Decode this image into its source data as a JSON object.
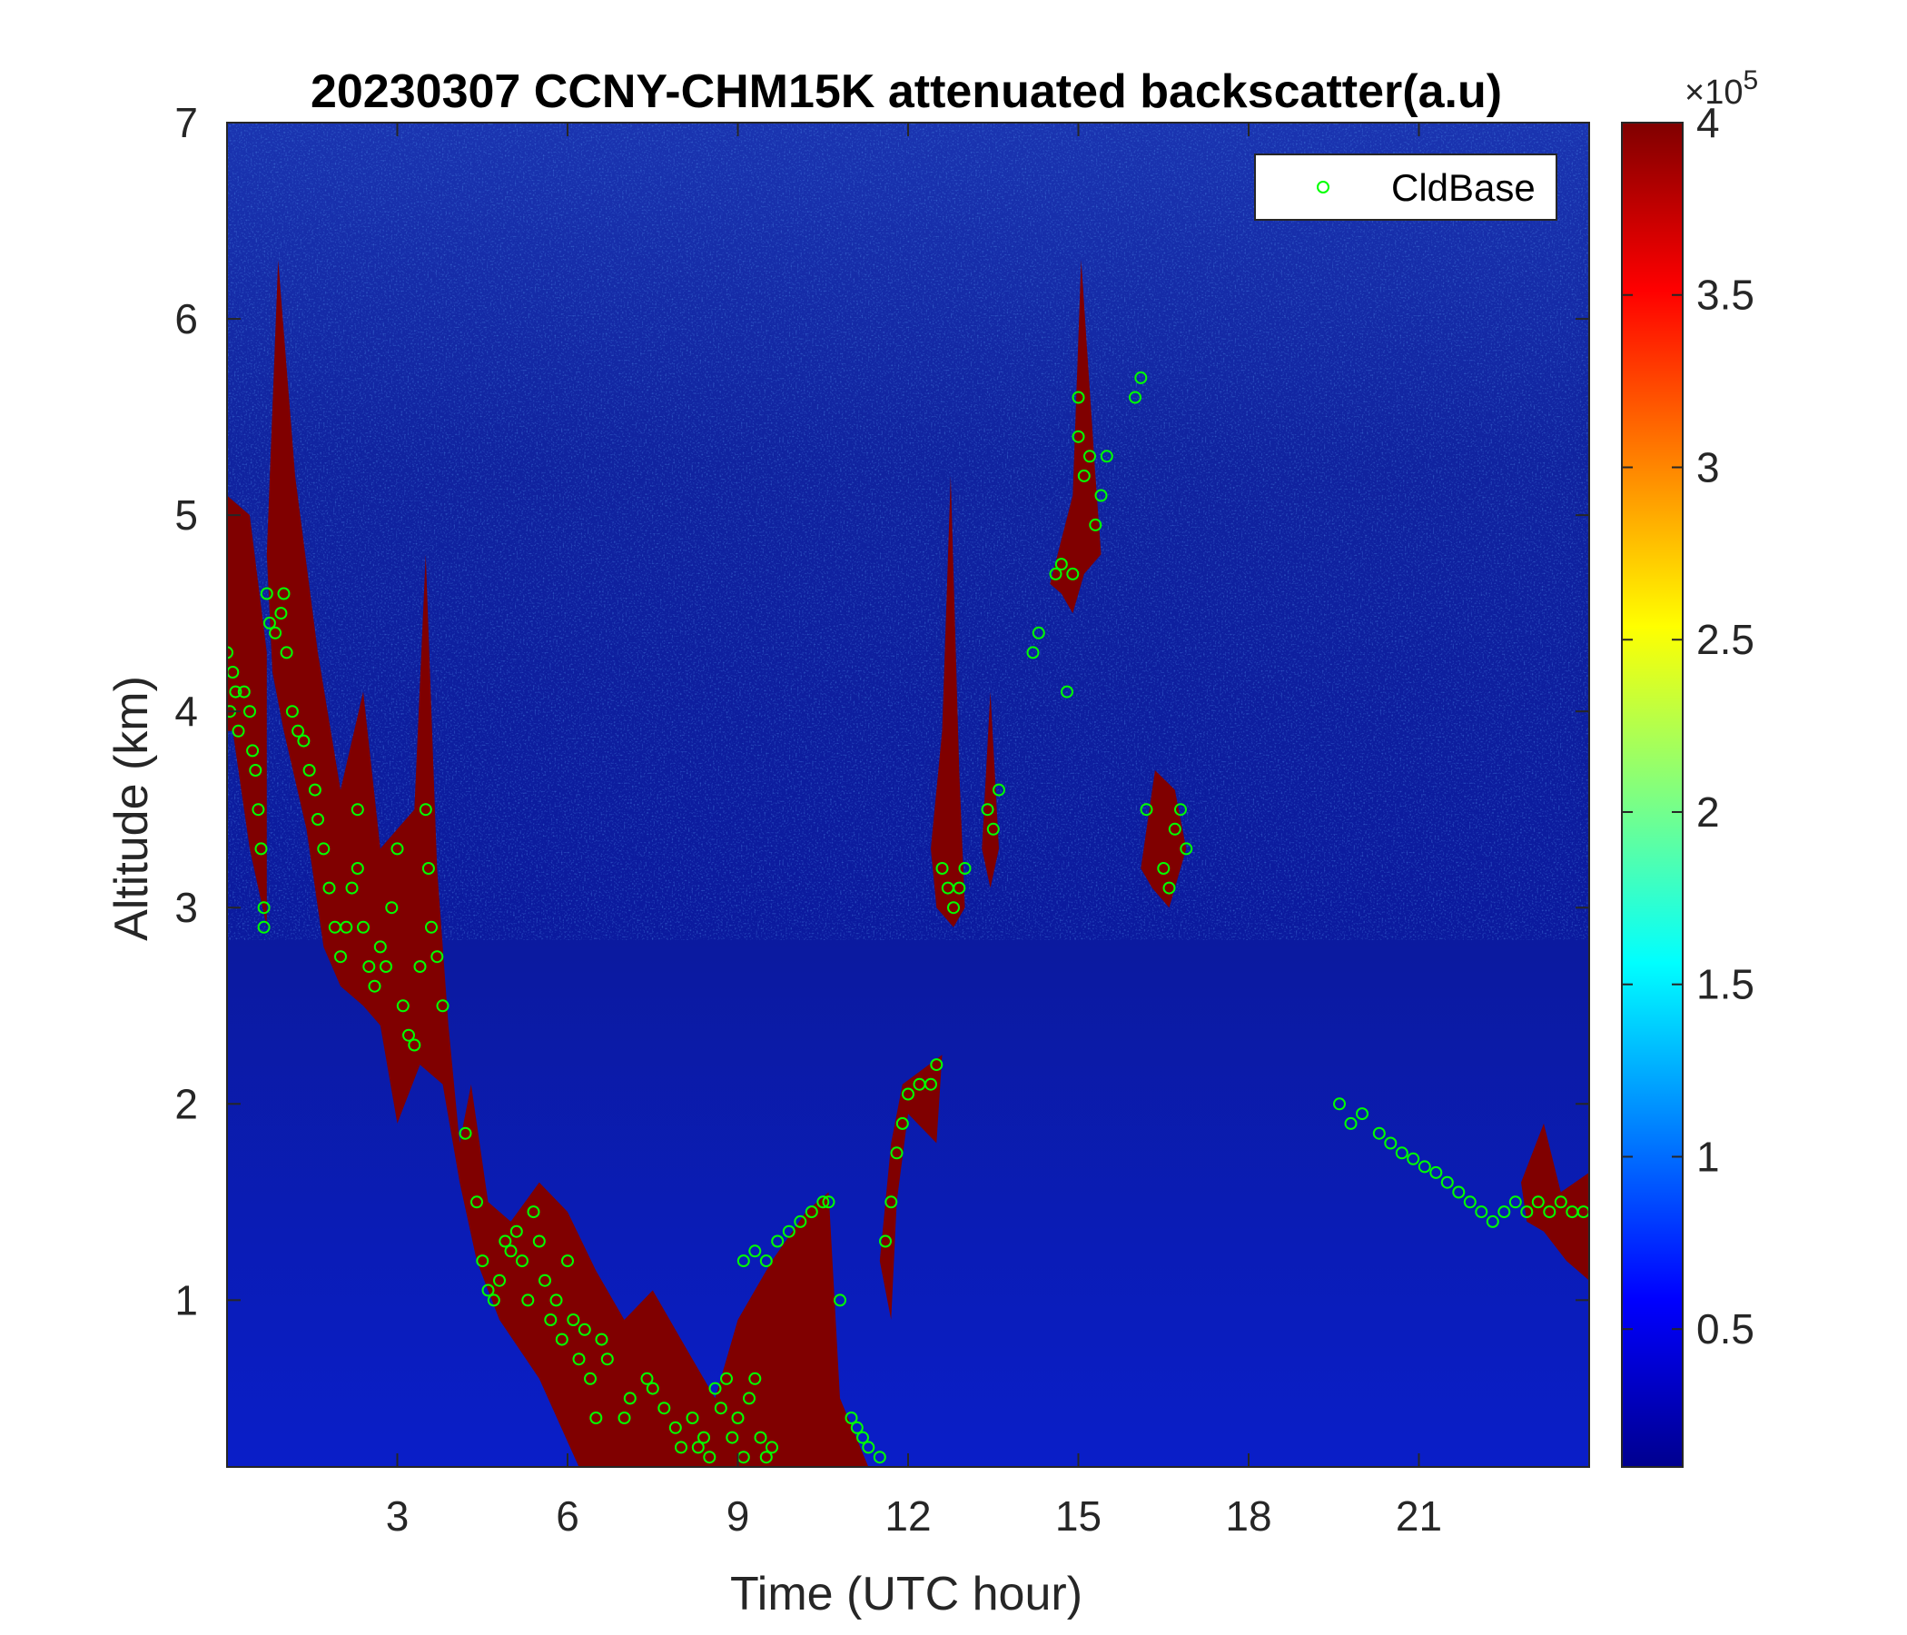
{
  "chart_data": {
    "type": "heatmap",
    "title": "20230307 CCNY-CHM15K attenuated backscatter(a.u)",
    "xlabel": "Time (UTC hour)",
    "ylabel": "Altitude (km)",
    "xlim": [
      0,
      24
    ],
    "ylim": [
      0.15,
      7
    ],
    "xticks": [
      3,
      6,
      9,
      12,
      15,
      18,
      21
    ],
    "yticks": [
      1,
      2,
      3,
      4,
      5,
      6,
      7
    ],
    "grid": false,
    "colorbar": {
      "colormap": "jet",
      "range": [
        0.1,
        4
      ],
      "ticks": [
        0.5,
        1,
        1.5,
        2,
        2.5,
        3,
        3.5,
        4
      ],
      "multiplier_label": "×10",
      "multiplier_exponent": "5"
    },
    "legend": {
      "position": "top-right",
      "entries": [
        "CldBase"
      ]
    },
    "series": [
      {
        "name": "CldBase",
        "marker": "circle",
        "color": "#00ff00",
        "points": [
          [
            0.0,
            4.3
          ],
          [
            0.05,
            4.0
          ],
          [
            0.1,
            4.2
          ],
          [
            0.15,
            4.1
          ],
          [
            0.2,
            3.9
          ],
          [
            0.3,
            4.1
          ],
          [
            0.4,
            4.0
          ],
          [
            0.45,
            3.8
          ],
          [
            0.5,
            3.7
          ],
          [
            0.55,
            3.5
          ],
          [
            0.6,
            3.3
          ],
          [
            0.65,
            3.0
          ],
          [
            0.65,
            2.9
          ],
          [
            0.7,
            4.6
          ],
          [
            0.75,
            4.45
          ],
          [
            0.85,
            4.4
          ],
          [
            0.95,
            4.5
          ],
          [
            1.0,
            4.6
          ],
          [
            1.05,
            4.3
          ],
          [
            1.15,
            4.0
          ],
          [
            1.25,
            3.9
          ],
          [
            1.35,
            3.85
          ],
          [
            1.45,
            3.7
          ],
          [
            1.55,
            3.6
          ],
          [
            1.6,
            3.45
          ],
          [
            1.7,
            3.3
          ],
          [
            1.8,
            3.1
          ],
          [
            1.9,
            2.9
          ],
          [
            2.0,
            2.75
          ],
          [
            2.1,
            2.9
          ],
          [
            2.2,
            3.1
          ],
          [
            2.3,
            3.5
          ],
          [
            2.3,
            3.2
          ],
          [
            2.4,
            2.9
          ],
          [
            2.5,
            2.7
          ],
          [
            2.6,
            2.6
          ],
          [
            2.7,
            2.8
          ],
          [
            2.8,
            2.7
          ],
          [
            2.9,
            3.0
          ],
          [
            3.0,
            3.3
          ],
          [
            3.1,
            2.5
          ],
          [
            3.2,
            2.35
          ],
          [
            3.3,
            2.3
          ],
          [
            3.4,
            2.7
          ],
          [
            3.5,
            3.5
          ],
          [
            3.55,
            3.2
          ],
          [
            3.6,
            2.9
          ],
          [
            3.7,
            2.75
          ],
          [
            3.8,
            2.5
          ],
          [
            4.2,
            1.85
          ],
          [
            4.4,
            1.5
          ],
          [
            4.5,
            1.2
          ],
          [
            4.6,
            1.05
          ],
          [
            4.7,
            1.0
          ],
          [
            4.8,
            1.1
          ],
          [
            4.9,
            1.3
          ],
          [
            5.0,
            1.25
          ],
          [
            5.1,
            1.35
          ],
          [
            5.2,
            1.2
          ],
          [
            5.3,
            1.0
          ],
          [
            5.4,
            1.45
          ],
          [
            5.5,
            1.3
          ],
          [
            5.6,
            1.1
          ],
          [
            5.7,
            0.9
          ],
          [
            5.8,
            1.0
          ],
          [
            5.9,
            0.8
          ],
          [
            6.0,
            1.2
          ],
          [
            6.1,
            0.9
          ],
          [
            6.2,
            0.7
          ],
          [
            6.3,
            0.85
          ],
          [
            6.4,
            0.6
          ],
          [
            6.5,
            0.4
          ],
          [
            6.6,
            0.8
          ],
          [
            6.7,
            0.7
          ],
          [
            7.0,
            0.4
          ],
          [
            7.1,
            0.5
          ],
          [
            7.4,
            0.6
          ],
          [
            7.5,
            0.55
          ],
          [
            7.7,
            0.45
          ],
          [
            7.9,
            0.35
          ],
          [
            8.0,
            0.25
          ],
          [
            8.2,
            0.4
          ],
          [
            8.3,
            0.25
          ],
          [
            8.4,
            0.3
          ],
          [
            8.5,
            0.2
          ],
          [
            8.6,
            0.55
          ],
          [
            8.7,
            0.45
          ],
          [
            8.8,
            0.6
          ],
          [
            8.9,
            0.3
          ],
          [
            9.0,
            0.4
          ],
          [
            9.1,
            0.2
          ],
          [
            9.2,
            0.5
          ],
          [
            9.3,
            0.6
          ],
          [
            9.4,
            0.3
          ],
          [
            9.5,
            0.2
          ],
          [
            9.6,
            0.25
          ],
          [
            9.1,
            1.2
          ],
          [
            9.3,
            1.25
          ],
          [
            9.5,
            1.2
          ],
          [
            9.7,
            1.3
          ],
          [
            9.9,
            1.35
          ],
          [
            10.1,
            1.4
          ],
          [
            10.3,
            1.45
          ],
          [
            10.5,
            1.5
          ],
          [
            10.6,
            1.5
          ],
          [
            10.8,
            1.0
          ],
          [
            11.0,
            0.4
          ],
          [
            11.1,
            0.35
          ],
          [
            11.2,
            0.3
          ],
          [
            11.3,
            0.25
          ],
          [
            11.5,
            0.2
          ],
          [
            11.6,
            1.3
          ],
          [
            11.7,
            1.5
          ],
          [
            11.8,
            1.75
          ],
          [
            11.9,
            1.9
          ],
          [
            12.0,
            2.05
          ],
          [
            12.2,
            2.1
          ],
          [
            12.4,
            2.1
          ],
          [
            12.5,
            2.2
          ],
          [
            12.6,
            3.2
          ],
          [
            12.7,
            3.1
          ],
          [
            12.8,
            3.0
          ],
          [
            12.9,
            3.1
          ],
          [
            13.0,
            3.2
          ],
          [
            13.4,
            3.5
          ],
          [
            13.5,
            3.4
          ],
          [
            13.6,
            3.6
          ],
          [
            14.2,
            4.3
          ],
          [
            14.3,
            4.4
          ],
          [
            14.6,
            4.7
          ],
          [
            14.7,
            4.75
          ],
          [
            14.8,
            4.1
          ],
          [
            14.9,
            4.7
          ],
          [
            15.0,
            5.4
          ],
          [
            15.1,
            5.2
          ],
          [
            15.2,
            5.3
          ],
          [
            15.3,
            4.95
          ],
          [
            15.4,
            5.1
          ],
          [
            15.5,
            5.3
          ],
          [
            15.0,
            5.6
          ],
          [
            16.0,
            5.6
          ],
          [
            16.1,
            5.7
          ],
          [
            16.2,
            3.5
          ],
          [
            16.5,
            3.2
          ],
          [
            16.6,
            3.1
          ],
          [
            16.7,
            3.4
          ],
          [
            16.8,
            3.5
          ],
          [
            16.9,
            3.3
          ],
          [
            19.6,
            2.0
          ],
          [
            19.8,
            1.9
          ],
          [
            20.0,
            1.95
          ],
          [
            20.3,
            1.85
          ],
          [
            20.5,
            1.8
          ],
          [
            20.7,
            1.75
          ],
          [
            20.9,
            1.72
          ],
          [
            21.1,
            1.68
          ],
          [
            21.3,
            1.65
          ],
          [
            21.5,
            1.6
          ],
          [
            21.7,
            1.55
          ],
          [
            21.9,
            1.5
          ],
          [
            22.1,
            1.45
          ],
          [
            22.3,
            1.4
          ],
          [
            22.5,
            1.45
          ],
          [
            22.7,
            1.5
          ],
          [
            22.9,
            1.45
          ],
          [
            23.1,
            1.5
          ],
          [
            23.3,
            1.45
          ],
          [
            23.5,
            1.5
          ],
          [
            23.7,
            1.45
          ],
          [
            23.9,
            1.45
          ]
        ]
      }
    ]
  }
}
